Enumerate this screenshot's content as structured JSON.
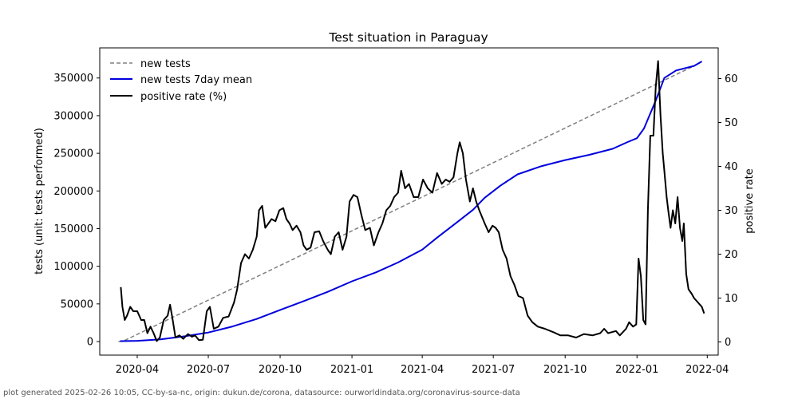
{
  "chart_data": {
    "type": "line",
    "title": "Test situation in Paraguay",
    "ylabel_left": "tests (unit: tests performed)",
    "ylabel_right": "positive rate",
    "x_range": [
      "2020-02-13",
      "2022-04-15"
    ],
    "ylim_left": [
      -18000,
      390000
    ],
    "ylim_right": [
      -3,
      67
    ],
    "x_ticks": [
      "2020-04",
      "2020-07",
      "2020-10",
      "2021-01",
      "2021-04",
      "2021-07",
      "2021-10",
      "2022-01",
      "2022-04"
    ],
    "y_ticks_left": [
      0,
      50000,
      100000,
      150000,
      200000,
      250000,
      300000,
      350000
    ],
    "y_ticks_right": [
      0,
      10,
      20,
      30,
      40,
      50,
      60
    ],
    "legend": [
      "new tests",
      "new tests 7day mean",
      "positive rate (%)"
    ],
    "colors": {
      "new_tests": "#808080",
      "mean": "#0000dd",
      "positive": "#000000"
    },
    "series": [
      {
        "name": "new tests 7day mean",
        "axis": "left",
        "points": [
          [
            "2020-03-10",
            500
          ],
          [
            "2020-04-01",
            1000
          ],
          [
            "2020-05-01",
            3000
          ],
          [
            "2020-06-01",
            7000
          ],
          [
            "2020-07-01",
            12000
          ],
          [
            "2020-08-01",
            20000
          ],
          [
            "2020-09-01",
            30000
          ],
          [
            "2020-10-01",
            42000
          ],
          [
            "2020-11-01",
            54000
          ],
          [
            "2020-12-01",
            66000
          ],
          [
            "2021-01-01",
            80000
          ],
          [
            "2021-02-01",
            92000
          ],
          [
            "2021-03-01",
            105000
          ],
          [
            "2021-04-01",
            122000
          ],
          [
            "2021-04-20",
            138000
          ],
          [
            "2021-05-15",
            158000
          ],
          [
            "2021-06-05",
            175000
          ],
          [
            "2021-06-20",
            191000
          ],
          [
            "2021-07-10",
            207000
          ],
          [
            "2021-08-01",
            222000
          ],
          [
            "2021-09-01",
            233000
          ],
          [
            "2021-10-01",
            241000
          ],
          [
            "2021-11-01",
            248000
          ],
          [
            "2021-12-01",
            256000
          ],
          [
            "2021-12-20",
            265000
          ],
          [
            "2022-01-01",
            270000
          ],
          [
            "2022-01-10",
            283000
          ],
          [
            "2022-01-25",
            320000
          ],
          [
            "2022-02-05",
            350000
          ],
          [
            "2022-02-20",
            360000
          ],
          [
            "2022-03-15",
            366000
          ],
          [
            "2022-03-25",
            372000
          ]
        ]
      },
      {
        "name": "new tests",
        "axis": "left",
        "points": [
          [
            "2020-03-08",
            0
          ],
          [
            "2020-03-14",
            500
          ],
          [
            "2022-03-21",
            369000
          ],
          [
            "2022-03-25",
            372000
          ]
        ]
      },
      {
        "name": "positive rate (%)",
        "axis": "right",
        "points": [
          [
            "2020-03-11",
            12.5
          ],
          [
            "2020-03-13",
            8
          ],
          [
            "2020-03-16",
            5
          ],
          [
            "2020-03-19",
            6
          ],
          [
            "2020-03-23",
            8
          ],
          [
            "2020-03-27",
            7
          ],
          [
            "2020-04-01",
            7
          ],
          [
            "2020-04-06",
            5
          ],
          [
            "2020-04-10",
            5
          ],
          [
            "2020-04-14",
            2
          ],
          [
            "2020-04-18",
            3.5
          ],
          [
            "2020-04-22",
            2
          ],
          [
            "2020-04-26",
            0.2
          ],
          [
            "2020-04-30",
            1
          ],
          [
            "2020-05-05",
            5
          ],
          [
            "2020-05-10",
            6
          ],
          [
            "2020-05-13",
            8.5
          ],
          [
            "2020-05-16",
            5.5
          ],
          [
            "2020-05-20",
            1
          ],
          [
            "2020-05-25",
            1.5
          ],
          [
            "2020-05-30",
            0.7
          ],
          [
            "2020-06-05",
            1.8
          ],
          [
            "2020-06-10",
            1.2
          ],
          [
            "2020-06-14",
            1.5
          ],
          [
            "2020-06-19",
            0.4
          ],
          [
            "2020-06-24",
            0.5
          ],
          [
            "2020-06-29",
            7
          ],
          [
            "2020-07-03",
            8
          ],
          [
            "2020-07-08",
            3
          ],
          [
            "2020-07-14",
            3.5
          ],
          [
            "2020-07-20",
            5.5
          ],
          [
            "2020-07-27",
            5.8
          ],
          [
            "2020-08-03",
            9
          ],
          [
            "2020-08-07",
            12
          ],
          [
            "2020-08-12",
            18
          ],
          [
            "2020-08-17",
            20
          ],
          [
            "2020-08-22",
            19
          ],
          [
            "2020-08-27",
            21
          ],
          [
            "2020-09-01",
            24
          ],
          [
            "2020-09-04",
            30
          ],
          [
            "2020-09-08",
            31
          ],
          [
            "2020-09-12",
            26
          ],
          [
            "2020-09-16",
            27
          ],
          [
            "2020-09-20",
            28
          ],
          [
            "2020-09-25",
            27.5
          ],
          [
            "2020-09-30",
            30
          ],
          [
            "2020-10-05",
            30.5
          ],
          [
            "2020-10-09",
            28
          ],
          [
            "2020-10-13",
            27
          ],
          [
            "2020-10-17",
            25.5
          ],
          [
            "2020-10-22",
            26.5
          ],
          [
            "2020-10-27",
            25
          ],
          [
            "2020-10-31",
            22
          ],
          [
            "2020-11-04",
            21
          ],
          [
            "2020-11-09",
            21.5
          ],
          [
            "2020-11-14",
            25
          ],
          [
            "2020-11-20",
            25.2
          ],
          [
            "2020-11-25",
            23
          ],
          [
            "2020-12-01",
            21
          ],
          [
            "2020-12-05",
            20
          ],
          [
            "2020-12-10",
            24
          ],
          [
            "2020-12-15",
            25
          ],
          [
            "2020-12-20",
            21
          ],
          [
            "2020-12-25",
            24
          ],
          [
            "2020-12-29",
            32
          ],
          [
            "2021-01-03",
            33.5
          ],
          [
            "2021-01-08",
            33
          ],
          [
            "2021-01-13",
            29
          ],
          [
            "2021-01-18",
            25.5
          ],
          [
            "2021-01-24",
            26
          ],
          [
            "2021-01-29",
            22
          ],
          [
            "2021-02-04",
            25
          ],
          [
            "2021-02-09",
            27
          ],
          [
            "2021-02-14",
            30
          ],
          [
            "2021-02-19",
            31
          ],
          [
            "2021-02-24",
            33
          ],
          [
            "2021-03-01",
            34
          ],
          [
            "2021-03-05",
            39
          ],
          [
            "2021-03-10",
            35
          ],
          [
            "2021-03-15",
            36
          ],
          [
            "2021-03-21",
            33
          ],
          [
            "2021-03-27",
            33
          ],
          [
            "2021-04-02",
            37
          ],
          [
            "2021-04-08",
            35
          ],
          [
            "2021-04-14",
            34
          ],
          [
            "2021-04-20",
            38.5
          ],
          [
            "2021-04-26",
            36
          ],
          [
            "2021-05-01",
            37
          ],
          [
            "2021-05-06",
            36.5
          ],
          [
            "2021-05-11",
            37.5
          ],
          [
            "2021-05-16",
            43
          ],
          [
            "2021-05-19",
            45.5
          ],
          [
            "2021-05-23",
            43
          ],
          [
            "2021-05-27",
            37
          ],
          [
            "2021-06-01",
            32
          ],
          [
            "2021-06-05",
            35
          ],
          [
            "2021-06-09",
            32
          ],
          [
            "2021-06-13",
            30
          ],
          [
            "2021-06-20",
            27
          ],
          [
            "2021-06-25",
            25
          ],
          [
            "2021-06-30",
            26.5
          ],
          [
            "2021-07-04",
            26
          ],
          [
            "2021-07-08",
            25
          ],
          [
            "2021-07-13",
            21
          ],
          [
            "2021-07-18",
            19
          ],
          [
            "2021-07-23",
            15
          ],
          [
            "2021-07-28",
            13
          ],
          [
            "2021-08-02",
            10.5
          ],
          [
            "2021-08-08",
            10
          ],
          [
            "2021-08-14",
            6
          ],
          [
            "2021-08-20",
            4.5
          ],
          [
            "2021-08-27",
            3.5
          ],
          [
            "2021-09-05",
            3
          ],
          [
            "2021-09-15",
            2.3
          ],
          [
            "2021-09-25",
            1.5
          ],
          [
            "2021-10-05",
            1.5
          ],
          [
            "2021-10-15",
            1
          ],
          [
            "2021-10-25",
            1.8
          ],
          [
            "2021-11-05",
            1.5
          ],
          [
            "2021-11-15",
            2
          ],
          [
            "2021-11-20",
            3
          ],
          [
            "2021-11-25",
            2
          ],
          [
            "2021-12-05",
            2.5
          ],
          [
            "2021-12-10",
            1.5
          ],
          [
            "2021-12-18",
            3
          ],
          [
            "2021-12-22",
            4.5
          ],
          [
            "2021-12-27",
            3.5
          ],
          [
            "2021-12-31",
            4
          ],
          [
            "2022-01-03",
            19
          ],
          [
            "2022-01-06",
            15
          ],
          [
            "2022-01-09",
            5
          ],
          [
            "2022-01-12",
            4
          ],
          [
            "2022-01-15",
            30
          ],
          [
            "2022-01-18",
            47
          ],
          [
            "2022-01-22",
            47
          ],
          [
            "2022-01-25",
            58
          ],
          [
            "2022-01-28",
            64
          ],
          [
            "2022-01-31",
            52
          ],
          [
            "2022-02-03",
            43
          ],
          [
            "2022-02-05",
            39
          ],
          [
            "2022-02-08",
            33
          ],
          [
            "2022-02-10",
            30
          ],
          [
            "2022-02-13",
            26
          ],
          [
            "2022-02-16",
            30
          ],
          [
            "2022-02-19",
            27
          ],
          [
            "2022-02-22",
            33
          ],
          [
            "2022-02-25",
            26
          ],
          [
            "2022-02-28",
            23
          ],
          [
            "2022-03-02",
            27
          ],
          [
            "2022-03-05",
            15.5
          ],
          [
            "2022-03-08",
            12
          ],
          [
            "2022-03-12",
            11
          ],
          [
            "2022-03-15",
            10
          ],
          [
            "2022-03-20",
            9
          ],
          [
            "2022-03-25",
            8
          ],
          [
            "2022-03-28",
            6.5
          ]
        ]
      }
    ]
  },
  "footer": "plot generated 2025-02-26 10:05, CC-by-sa-nc, origin: dukun.de/corona, datasource: ourworldindata.org/coronavirus-source-data"
}
